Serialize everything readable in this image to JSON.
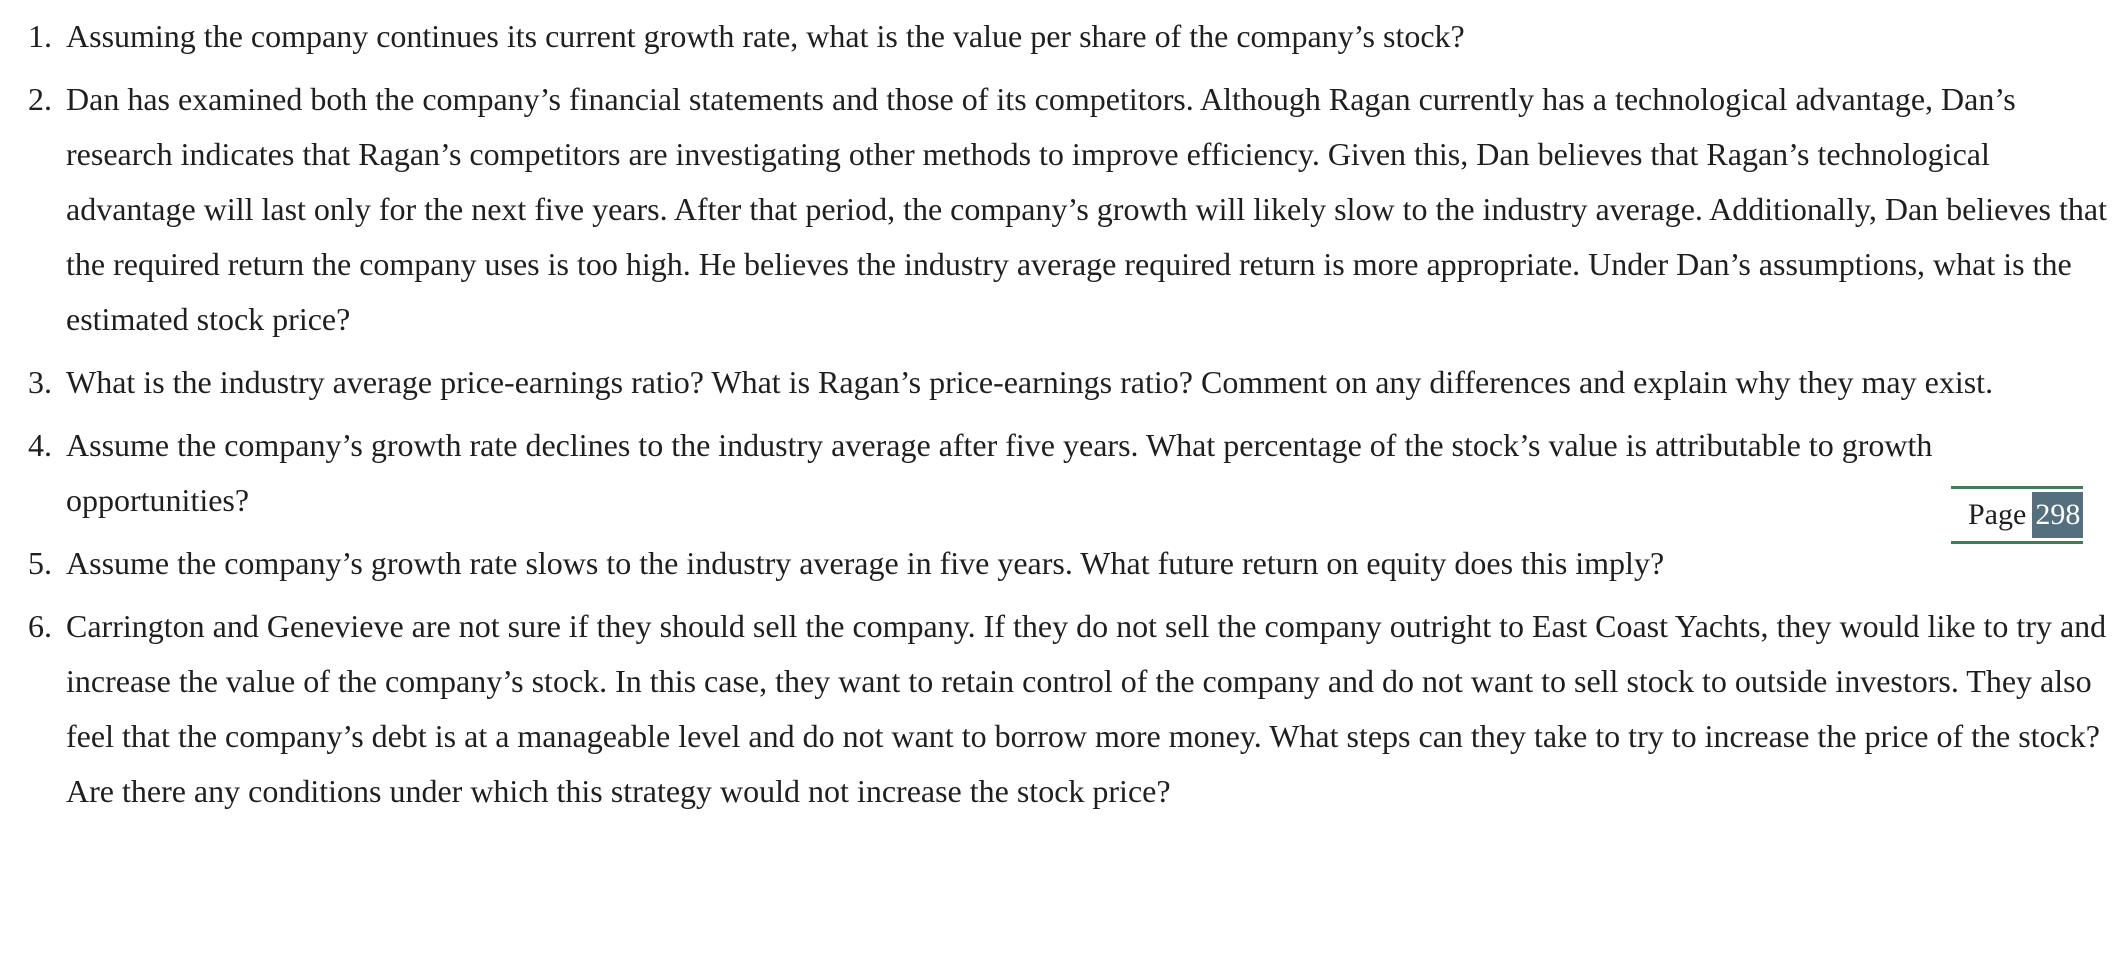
{
  "questions": [
    {
      "number": "1.",
      "text": "Assuming the company continues its current growth rate, what is the value per share of the company’s stock?"
    },
    {
      "number": "2.",
      "text": "Dan has examined both the company’s financial statements and those of its competitors. Although Ragan currently has a technological advantage, Dan’s research indicates that Ragan’s competitors are investigating other methods to improve efficiency. Given this, Dan believes that Ragan’s technological advantage will last only for the next five years. After that period, the company’s growth will likely slow to the industry average. Additionally, Dan believes that the required return the company uses is too high. He believes the industry average required return is more appropriate. Under Dan’s assumptions, what is the estimated stock price?"
    },
    {
      "number": "3.",
      "text": "What is the industry average price-earnings ratio? What is Ragan’s price-earnings ratio? Comment on any differences and explain why they may exist."
    },
    {
      "number": "4.",
      "text": "Assume the company’s growth rate declines to the industry average after five years. What percentage of the stock’s value is attributable to growth opportunities?"
    },
    {
      "number": "5.",
      "text": "Assume the company’s growth rate slows to the industry average in five years. What future return on equity does this imply?"
    },
    {
      "number": "6.",
      "text": "Carrington and Genevieve are not sure if they should sell the company. If they do not sell the company outright to East Coast Yachts, they would like to try and increase the value of the company’s stock. In this case, they want to retain control of the company and do not want to sell stock to outside investors. They also feel that the company’s debt is at a manageable level and do not want to borrow more money. What steps can they take to try to increase the price of the stock? Are there any conditions under which this strategy would not increase the stock price?"
    }
  ],
  "page_marker": {
    "label": "Page",
    "number": "298"
  },
  "colors": {
    "marker_rule": "#3f7d5a",
    "marker_number_bg": "#54707f",
    "text": "#1f1f1f"
  }
}
